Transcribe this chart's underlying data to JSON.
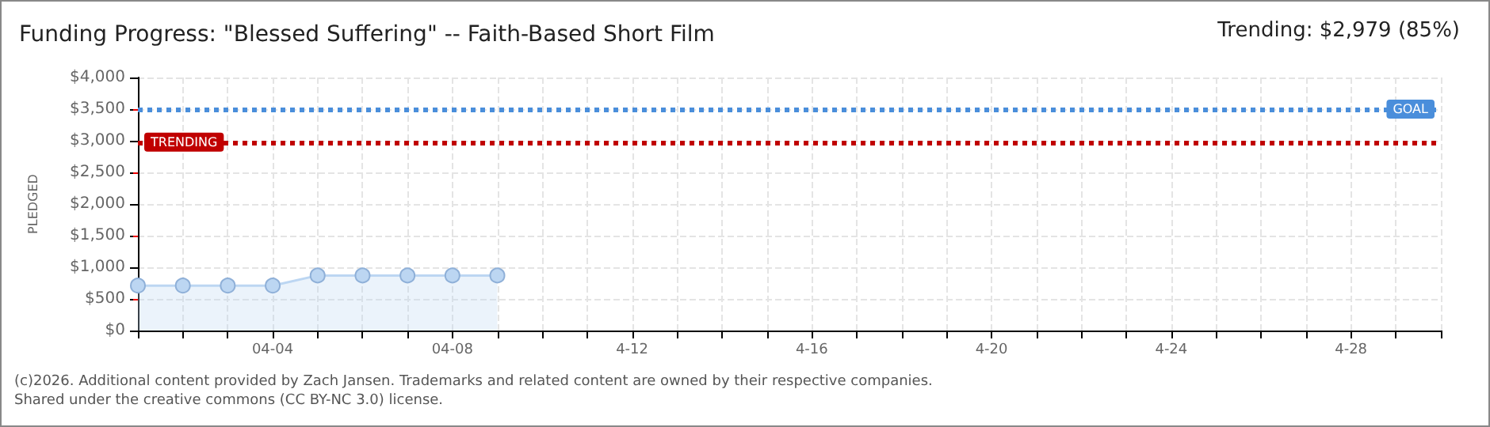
{
  "chart_data": {
    "type": "area",
    "title": "Funding Progress: \"Blessed Suffering\" -- Faith-Based Short Film",
    "subtitle": "Trending: $2,979 (85%)",
    "ylabel": "PLEDGED",
    "x": [
      "--04-01",
      "--04-02",
      "--04-03",
      "--04-04",
      "--04-05",
      "--04-06",
      "--04-07",
      "--04-08",
      "--04-09"
    ],
    "series": [
      {
        "color": "#bcd6f2",
        "values": [
          710,
          710,
          710,
          710,
          870,
          870,
          870,
          870,
          870
        ]
      }
    ],
    "xlim": [
      "--04-01",
      "--04-30"
    ],
    "xticks": [
      {
        "value": "--04-01",
        "label": null
      },
      {
        "value": "--04-02",
        "label": null
      },
      {
        "value": "--04-03",
        "label": null
      },
      {
        "value": "--04-04",
        "label": "04-04"
      },
      {
        "value": "--04-05",
        "label": null
      },
      {
        "value": "--04-06",
        "label": null
      },
      {
        "value": "--04-07",
        "label": null
      },
      {
        "value": "--04-08",
        "label": "04-08"
      },
      {
        "value": "--04-09",
        "label": null
      },
      {
        "value": "--04-10",
        "label": null
      },
      {
        "value": "--04-11",
        "label": null
      },
      {
        "value": "--04-12",
        "label": "4-12"
      },
      {
        "value": "--04-13",
        "label": null
      },
      {
        "value": "--04-14",
        "label": null
      },
      {
        "value": "--04-15",
        "label": null
      },
      {
        "value": "--04-16",
        "label": "4-16"
      },
      {
        "value": "--04-17",
        "label": null
      },
      {
        "value": "--04-18",
        "label": null
      },
      {
        "value": "--04-19",
        "label": null
      },
      {
        "value": "--04-20",
        "label": "4-20"
      },
      {
        "value": "--04-21",
        "label": null
      },
      {
        "value": "--04-22",
        "label": null
      },
      {
        "value": "--04-23",
        "label": null
      },
      {
        "value": "--04-24",
        "label": "4-24"
      },
      {
        "value": "--04-25",
        "label": null
      },
      {
        "value": "--04-26",
        "label": null
      },
      {
        "value": "--04-27",
        "label": null
      },
      {
        "value": "--04-28",
        "label": "4-28"
      },
      {
        "value": "--04-29",
        "label": null
      },
      {
        "value": "--04-30",
        "label": null
      }
    ],
    "ylim": [
      0,
      4000
    ],
    "yticks": [
      {
        "value": 0,
        "label": "$0"
      },
      {
        "value": 500,
        "label": "$500"
      },
      {
        "value": 1000,
        "label": "$1,000"
      },
      {
        "value": 1500,
        "label": "$1,500"
      },
      {
        "value": 2000,
        "label": "$2,000"
      },
      {
        "value": 2500,
        "label": "$2,500"
      },
      {
        "value": 3000,
        "label": "$3,000"
      },
      {
        "value": 3500,
        "label": "$3,500"
      },
      {
        "value": 4000,
        "label": "$4,000"
      }
    ],
    "ref_lines": [
      {
        "axis": "y",
        "value": 3500,
        "label": "GOAL",
        "color": "#4a8edb",
        "line_style": "dotted"
      },
      {
        "axis": "y",
        "value": 2979,
        "label": "TRENDING",
        "color": "#c00000",
        "line_style": "dotted"
      }
    ],
    "annotations": [
      "(c)2026. Additional content provided by Zach Jansen. Trademarks and related content are owned by their respective companies.",
      "Shared under the creative commons (CC BY-NC 3.0) license."
    ],
    "grid": true,
    "marker": "circle",
    "line_style": "solid"
  }
}
